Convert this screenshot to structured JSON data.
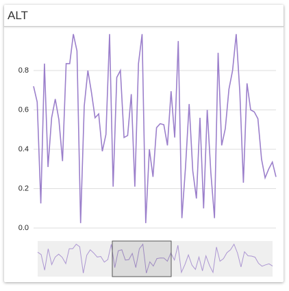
{
  "chart_data": {
    "type": "line",
    "title": "ALT",
    "color": "#9b7fcb",
    "grid": true,
    "ylim": [
      0,
      1.0
    ],
    "yticks": [
      {
        "value": 0,
        "label": "0.0"
      },
      0.2,
      0.4,
      0.6,
      0.8
    ],
    "values": [
      0.72,
      0.64,
      0.125,
      0.835,
      0.31,
      0.56,
      0.655,
      0.55,
      0.34,
      0.835,
      0.835,
      0.985,
      0.9,
      0.025,
      0.62,
      0.8,
      0.69,
      0.56,
      0.58,
      0.39,
      0.475,
      0.985,
      0.21,
      0.765,
      0.8,
      0.46,
      0.47,
      0.68,
      0.21,
      0.835,
      0.985,
      0.025,
      0.4,
      0.26,
      0.51,
      0.53,
      0.525,
      0.42,
      0.695,
      0.46,
      0.95,
      0.05,
      0.31,
      0.63,
      0.29,
      0.15,
      0.56,
      0.1,
      0.6,
      0.28,
      0.05,
      0.89,
      0.42,
      0.505,
      0.705,
      0.8,
      0.985,
      0.69,
      0.23,
      0.735,
      0.6,
      0.59,
      0.555,
      0.35,
      0.255,
      0.3,
      0.335,
      0.26
    ]
  }
}
